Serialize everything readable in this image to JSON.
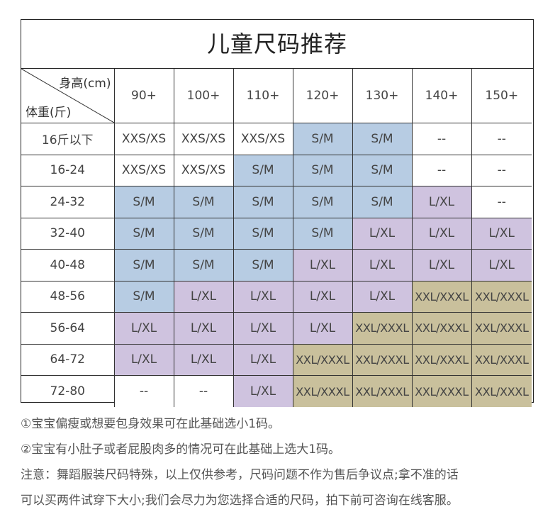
{
  "title": "儿童尺码推荐",
  "axis": {
    "height_label": "身高(cm)",
    "weight_label": "体重(斤)"
  },
  "columns": [
    "90+",
    "100+",
    "110+",
    "120+",
    "130+",
    "140+",
    "150+"
  ],
  "rows": [
    {
      "label": "16斤以下",
      "cells": [
        "XXS/XS",
        "XXS/XS",
        "XXS/XS",
        "S/M",
        "S/M",
        "--",
        "--"
      ]
    },
    {
      "label": "16-24",
      "cells": [
        "XXS/XS",
        "XXS/XS",
        "S/M",
        "S/M",
        "S/M",
        "--",
        "--"
      ]
    },
    {
      "label": "24-32",
      "cells": [
        "S/M",
        "S/M",
        "S/M",
        "S/M",
        "S/M",
        "L/XL",
        "--"
      ]
    },
    {
      "label": "32-40",
      "cells": [
        "S/M",
        "S/M",
        "S/M",
        "S/M",
        "L/XL",
        "L/XL",
        "L/XL"
      ]
    },
    {
      "label": "40-48",
      "cells": [
        "S/M",
        "S/M",
        "S/M",
        "L/XL",
        "L/XL",
        "L/XL",
        "L/XL"
      ]
    },
    {
      "label": "48-56",
      "cells": [
        "S/M",
        "L/XL",
        "L/XL",
        "L/XL",
        "L/XL",
        "XXL/XXXL",
        "XXL/XXXL"
      ]
    },
    {
      "label": "56-64",
      "cells": [
        "L/XL",
        "L/XL",
        "L/XL",
        "L/XL",
        "XXL/XXXL",
        "XXL/XXXL",
        "XXL/XXXL"
      ]
    },
    {
      "label": "64-72",
      "cells": [
        "L/XL",
        "L/XL",
        "L/XL",
        "XXL/XXXL",
        "XXL/XXXL",
        "XXL/XXXL",
        "XXL/XXXL"
      ]
    },
    {
      "label": "72-80",
      "cells": [
        "--",
        "--",
        "L/XL",
        "XXL/XXXL",
        "XXL/XXXL",
        "XXL/XXXL",
        "XXL/XXXL"
      ]
    }
  ],
  "size_colors": {
    "XXS/XS": "#ffffff",
    "S/M": "#b7cce3",
    "L/XL": "#cfc3df",
    "XXL/XXXL": "#c9c09c",
    "--": "#ffffff"
  },
  "notes": {
    "note1": "①宝宝偏瘦或想要包身效果可在此基础选小1码。",
    "note2": "②宝宝有小肚子或者屁股肉多的情况可在此基础上选大1码。",
    "note3_line1": "注意：舞蹈服装尺码特殊，以上仅供参考，尺码问题不作为售后争议点;拿不准的话",
    "note3_line2": "可以买两件试穿下大小;我们会尽力为您选择合适的尺码，拍下前可咨询在线客服。"
  }
}
